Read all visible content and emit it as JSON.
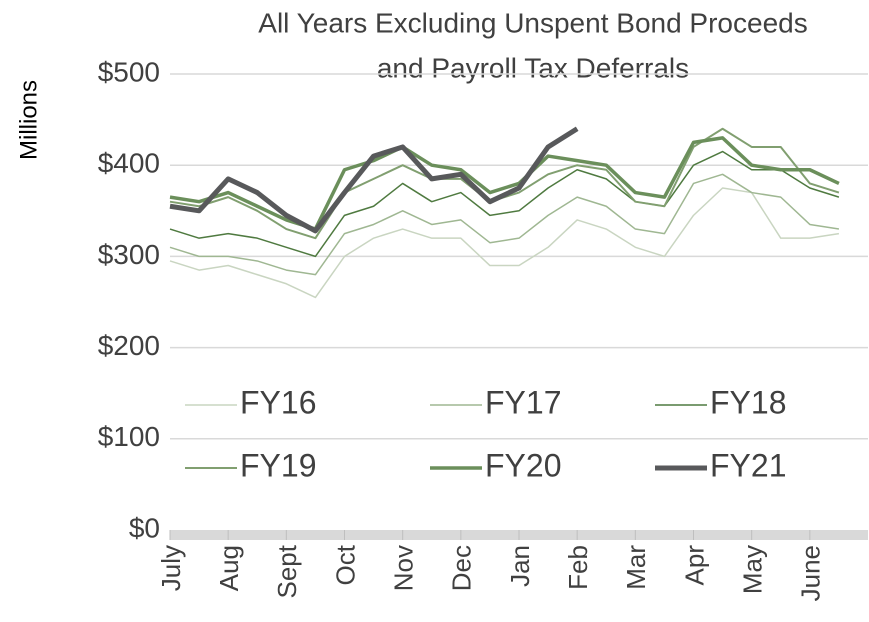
{
  "chart_data": {
    "type": "line",
    "title": [
      "All Years Excluding Unspent Bond Proceeds",
      "and Payroll Tax Deferrals"
    ],
    "y_label": "Millions",
    "x": [
      0,
      0.5,
      1,
      1.5,
      2,
      2.5,
      3,
      3.5,
      4,
      4.5,
      5,
      5.5,
      6,
      6.5,
      7,
      7.5,
      8,
      8.5,
      9,
      9.5,
      10,
      10.5,
      11,
      11.5
    ],
    "xlim": [
      0,
      12
    ],
    "xticks": [
      {
        "value": 0,
        "label": "July"
      },
      {
        "value": 1,
        "label": "Aug"
      },
      {
        "value": 2,
        "label": "Sept"
      },
      {
        "value": 3,
        "label": "Oct"
      },
      {
        "value": 4,
        "label": "Nov"
      },
      {
        "value": 5,
        "label": "Dec"
      },
      {
        "value": 6,
        "label": "Jan"
      },
      {
        "value": 7,
        "label": "Feb"
      },
      {
        "value": 8,
        "label": "Mar"
      },
      {
        "value": 9,
        "label": "Apr"
      },
      {
        "value": 10,
        "label": "May"
      },
      {
        "value": 11,
        "label": "June"
      }
    ],
    "ylim": [
      0,
      500
    ],
    "yticks": [
      {
        "value": 0,
        "label": "$0"
      },
      {
        "value": 100,
        "label": "$100"
      },
      {
        "value": 200,
        "label": "$200"
      },
      {
        "value": 300,
        "label": "$300"
      },
      {
        "value": 400,
        "label": "$400"
      },
      {
        "value": 500,
        "label": "$500"
      }
    ],
    "grid": true,
    "legend": "inside",
    "series": [
      {
        "name": "FY16",
        "color": "#c9d5c1",
        "width": 1.5,
        "values": [
          295,
          285,
          290,
          280,
          270,
          255,
          300,
          320,
          330,
          320,
          320,
          290,
          290,
          310,
          340,
          330,
          310,
          300,
          345,
          375,
          370,
          320,
          320,
          325
        ]
      },
      {
        "name": "FY17",
        "color": "#9fb792",
        "width": 1.5,
        "values": [
          310,
          300,
          300,
          295,
          285,
          280,
          325,
          335,
          350,
          335,
          340,
          315,
          320,
          345,
          365,
          355,
          330,
          325,
          380,
          390,
          370,
          365,
          335,
          330
        ]
      },
      {
        "name": "FY18",
        "color": "#4f7a40",
        "width": 1.5,
        "values": [
          330,
          320,
          325,
          320,
          310,
          300,
          345,
          355,
          380,
          360,
          370,
          345,
          350,
          375,
          395,
          385,
          360,
          355,
          400,
          415,
          395,
          395,
          375,
          365
        ]
      },
      {
        "name": "FY19",
        "color": "#819f70",
        "width": 2,
        "values": [
          360,
          355,
          365,
          350,
          330,
          320,
          370,
          385,
          400,
          385,
          385,
          360,
          370,
          390,
          400,
          395,
          360,
          355,
          420,
          440,
          420,
          420,
          380,
          370
        ]
      },
      {
        "name": "FY20",
        "color": "#6b8f5b",
        "width": 3.5,
        "values": [
          365,
          360,
          370,
          355,
          340,
          330,
          395,
          405,
          420,
          400,
          395,
          370,
          380,
          410,
          405,
          400,
          370,
          365,
          425,
          430,
          400,
          395,
          395,
          380
        ]
      },
      {
        "name": "FY21",
        "color": "#58595b",
        "width": 5,
        "values": [
          355,
          350,
          385,
          370,
          345,
          328,
          370,
          410,
          420,
          385,
          390,
          360,
          375,
          420,
          440,
          null,
          null,
          null,
          null,
          null,
          null,
          null,
          null,
          null
        ]
      }
    ]
  }
}
